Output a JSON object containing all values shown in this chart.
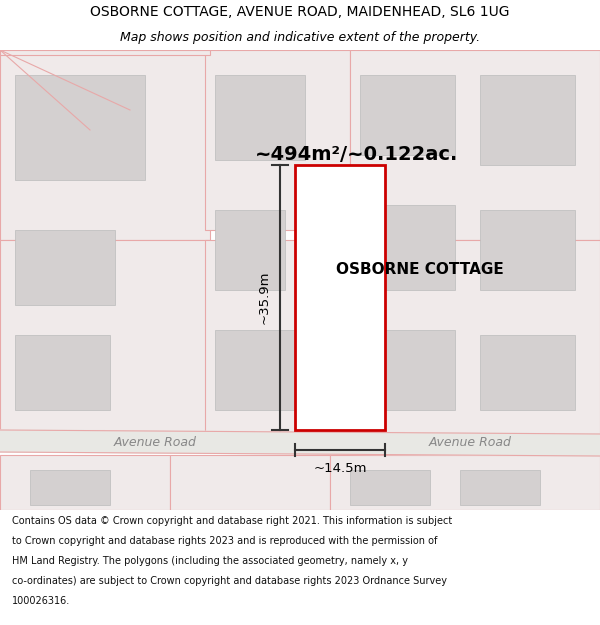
{
  "title": "OSBORNE COTTAGE, AVENUE ROAD, MAIDENHEAD, SL6 1UG",
  "subtitle": "Map shows position and indicative extent of the property.",
  "area_text": "~494m²/~0.122ac.",
  "cottage_label": "OSBORNE COTTAGE",
  "width_label": "~14.5m",
  "height_label": "~35.9m",
  "road_label": "Avenue Road",
  "footer_lines": [
    "Contains OS data © Crown copyright and database right 2021. This information is subject",
    "to Crown copyright and database rights 2023 and is reproduced with the permission of",
    "HM Land Registry. The polygons (including the associated geometry, namely x, y",
    "co-ordinates) are subject to Crown copyright and database rights 2023 Ordnance Survey",
    "100026316."
  ],
  "map_bg": "#f7f2f2",
  "road_color": "#e8a8a8",
  "plot_color": "#cc0000",
  "building_gray": "#d4d0d0",
  "parcel_edge": "#e8a8a8",
  "parcel_fill": "#f0eaea"
}
